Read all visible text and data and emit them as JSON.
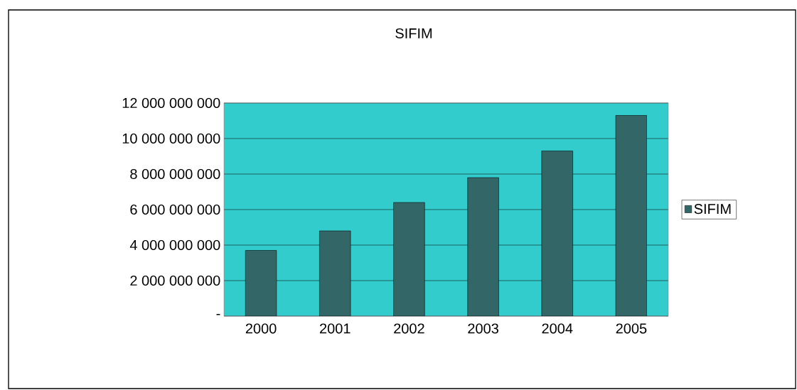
{
  "chart_data": {
    "type": "bar",
    "title": "SIFIM",
    "categories": [
      "2000",
      "2001",
      "2002",
      "2003",
      "2004",
      "2005"
    ],
    "series": [
      {
        "name": "SIFIM",
        "color": "#336666",
        "values": [
          3700000000,
          4800000000,
          6400000000,
          7800000000,
          9300000000,
          11300000000
        ]
      }
    ],
    "ylim": [
      0,
      12000000000
    ],
    "yticks": [
      {
        "value": 0,
        "label": "-"
      },
      {
        "value": 2000000000,
        "label": "2 000 000 000"
      },
      {
        "value": 4000000000,
        "label": "4 000 000 000"
      },
      {
        "value": 6000000000,
        "label": "6 000 000 000"
      },
      {
        "value": 8000000000,
        "label": "8 000 000 000"
      },
      {
        "value": 10000000000,
        "label": "10 000 000 000"
      },
      {
        "value": 12000000000,
        "label": "12 000 000 000"
      }
    ],
    "grid": "y",
    "legend": "right"
  }
}
